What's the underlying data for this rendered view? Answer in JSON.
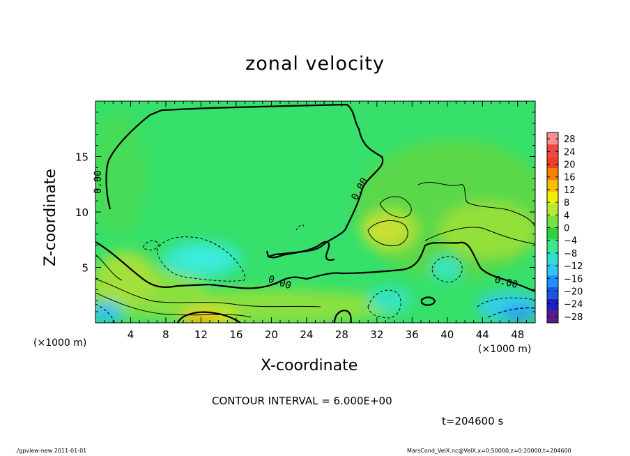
{
  "chart_data": {
    "type": "heatmap",
    "title": "zonal velocity",
    "xlabel": "X-coordinate",
    "ylabel": "Z-coordinate",
    "x_unit_label": "(×1000 m)",
    "xlim": [
      0,
      50
    ],
    "ylim": [
      0,
      20
    ],
    "x_ticks": [
      4,
      8,
      12,
      16,
      20,
      24,
      28,
      32,
      36,
      40,
      44,
      48
    ],
    "y_ticks": [
      5,
      10,
      15
    ],
    "colorbar": {
      "labels": [
        28,
        24,
        20,
        16,
        12,
        8,
        4,
        0,
        -4,
        -8,
        -12,
        -16,
        -20,
        -24,
        -28
      ],
      "range": [
        -30,
        30
      ],
      "colors": [
        "#5a1a8a",
        "#2020c0",
        "#1a55e0",
        "#1e90ff",
        "#30c8f0",
        "#30e0c8",
        "#3ce68a",
        "#30d040",
        "#78e040",
        "#b8e838",
        "#f0f000",
        "#f8c000",
        "#f88000",
        "#f04020",
        "#f04848",
        "#f89090"
      ]
    },
    "contour_labels": [
      "0.00",
      "0.00",
      "0.00",
      "0.00",
      "0.00"
    ],
    "contour_interval": "CONTOUR INTERVAL = 6.000E+00",
    "time": "t=204600 s"
  },
  "footer": {
    "left": "./gpview-new  2011-01-01",
    "right": "MarsCond_VelX.nc@VelX,x=0:50000,z=0:20000,t=204600"
  }
}
